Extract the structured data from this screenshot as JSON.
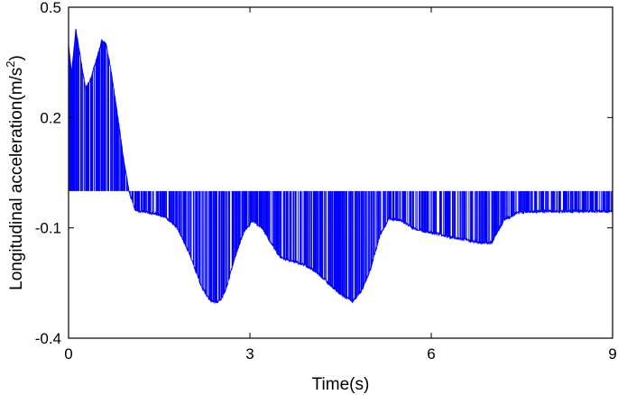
{
  "chart_data": {
    "type": "line",
    "xlabel": "Time(s)",
    "ylabel_main": "Longitudinal acceleration(m/s",
    "ylabel_sup": "2",
    "ylabel_close": ")",
    "xlim": [
      0,
      9
    ],
    "ylim": [
      -0.4,
      0.5
    ],
    "xticks": [
      0,
      3,
      6,
      9
    ],
    "yticks": [
      -0.4,
      -0.1,
      0.2,
      0.5
    ],
    "xtick_labels": [
      "0",
      "3",
      "6",
      "9"
    ],
    "ytick_labels": [
      "-0.4",
      "-0.1",
      "0.2",
      "0.5"
    ],
    "grid": false,
    "series": [
      {
        "color": "#0000ff",
        "zero_level": 0,
        "envelope": {
          "x": [
            0,
            0.05,
            0.12,
            0.2,
            0.28,
            0.35,
            0.45,
            0.55,
            0.62,
            0.7,
            0.8,
            0.9,
            1.0,
            1.1,
            1.2,
            1.4,
            1.6,
            1.8,
            2.0,
            2.2,
            2.35,
            2.5,
            2.6,
            2.75,
            2.9,
            3.05,
            3.2,
            3.35,
            3.5,
            3.7,
            3.9,
            4.1,
            4.3,
            4.5,
            4.7,
            4.85,
            5.0,
            5.15,
            5.3,
            5.5,
            5.7,
            5.9,
            6.1,
            6.3,
            6.5,
            6.8,
            7.0,
            7.2,
            7.4,
            7.6,
            7.8,
            8.0,
            8.3,
            8.6,
            9.0
          ],
          "y": [
            0.4,
            0.32,
            0.44,
            0.36,
            0.28,
            0.3,
            0.35,
            0.41,
            0.4,
            0.33,
            0.22,
            0.1,
            0.0,
            -0.05,
            -0.055,
            -0.06,
            -0.07,
            -0.1,
            -0.17,
            -0.26,
            -0.3,
            -0.3,
            -0.27,
            -0.18,
            -0.11,
            -0.08,
            -0.1,
            -0.14,
            -0.18,
            -0.19,
            -0.2,
            -0.22,
            -0.25,
            -0.28,
            -0.3,
            -0.27,
            -0.21,
            -0.12,
            -0.075,
            -0.08,
            -0.1,
            -0.11,
            -0.115,
            -0.125,
            -0.13,
            -0.14,
            -0.14,
            -0.08,
            -0.06,
            -0.055,
            -0.055,
            -0.055,
            -0.055,
            -0.055,
            -0.055
          ]
        }
      }
    ]
  }
}
